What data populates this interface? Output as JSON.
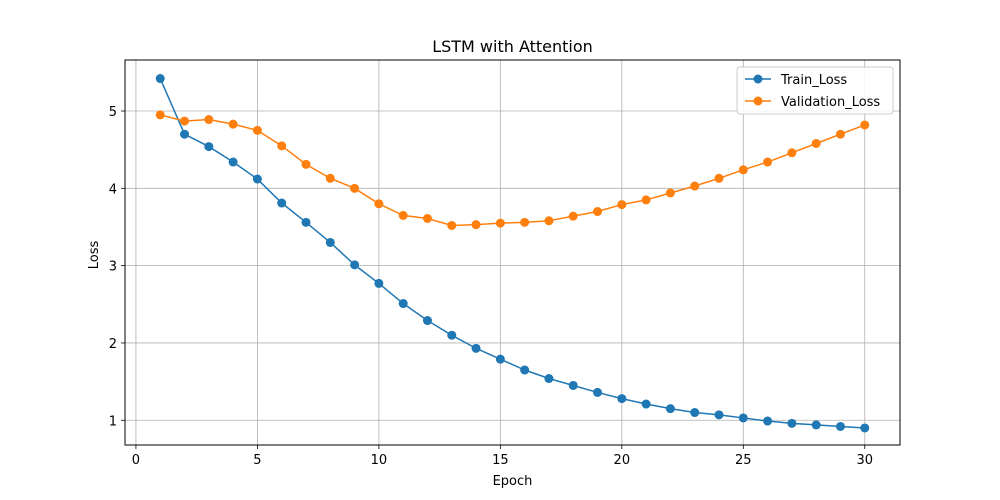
{
  "chart_data": {
    "type": "line",
    "title": "LSTM with Attention",
    "xlabel": "Epoch",
    "ylabel": "Loss",
    "xlim": [
      -0.45,
      31.45
    ],
    "ylim": [
      0.68,
      5.66
    ],
    "xticks": [
      0,
      5,
      10,
      15,
      20,
      25,
      30
    ],
    "yticks": [
      1,
      2,
      3,
      4,
      5
    ],
    "grid": true,
    "legend_position": "top-right",
    "x": [
      1,
      2,
      3,
      4,
      5,
      6,
      7,
      8,
      9,
      10,
      11,
      12,
      13,
      14,
      15,
      16,
      17,
      18,
      19,
      20,
      21,
      22,
      23,
      24,
      25,
      26,
      27,
      28,
      29,
      30
    ],
    "series": [
      {
        "name": "Train_Loss",
        "color": "#1f77b4",
        "values": [
          5.42,
          4.7,
          4.54,
          4.34,
          4.12,
          3.81,
          3.56,
          3.3,
          3.01,
          2.77,
          2.51,
          2.29,
          2.1,
          1.93,
          1.79,
          1.65,
          1.54,
          1.45,
          1.36,
          1.28,
          1.21,
          1.15,
          1.1,
          1.07,
          1.03,
          0.99,
          0.96,
          0.94,
          0.92,
          0.9
        ]
      },
      {
        "name": "Validation_Loss",
        "color": "#ff7f0e",
        "values": [
          4.95,
          4.87,
          4.89,
          4.83,
          4.75,
          4.55,
          4.31,
          4.13,
          4.0,
          3.8,
          3.65,
          3.61,
          3.52,
          3.53,
          3.55,
          3.56,
          3.58,
          3.64,
          3.7,
          3.79,
          3.85,
          3.94,
          4.03,
          4.13,
          4.24,
          4.34,
          4.46,
          4.58,
          4.7,
          4.82
        ]
      }
    ]
  }
}
